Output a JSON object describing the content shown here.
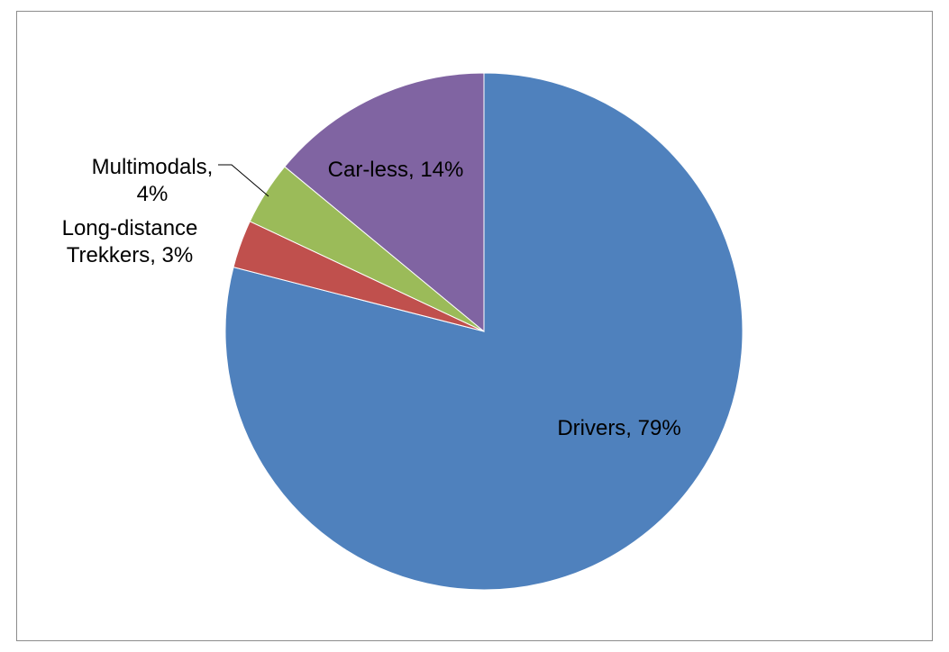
{
  "chart_data": {
    "type": "pie",
    "title": "",
    "legend": "none",
    "start_angle_deg": 0,
    "direction": "clockwise",
    "slices": [
      {
        "name": "Drivers",
        "value": 79,
        "label_line1": "Drivers, 79%",
        "label_line2": "",
        "color": "#4f81bd",
        "label_mode": "inside"
      },
      {
        "name": "Long-distance Trekkers",
        "value": 3,
        "label_line1": "Long-distance",
        "label_line2": "Trekkers, 3%",
        "color": "#c0504d",
        "label_mode": "outside"
      },
      {
        "name": "Multimodals",
        "value": 4,
        "label_line1": "Multimodals,",
        "label_line2": "4%",
        "color": "#9bbb59",
        "label_mode": "outside-leader"
      },
      {
        "name": "Car-less",
        "value": 14,
        "label_line1": "Car-less, 14%",
        "label_line2": "",
        "color": "#8064a2",
        "label_mode": "inside"
      }
    ]
  }
}
